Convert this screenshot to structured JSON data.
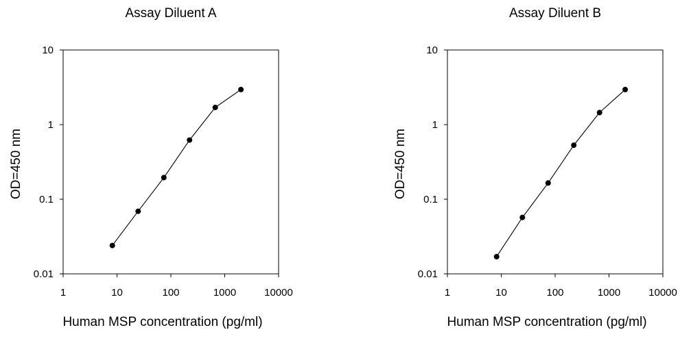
{
  "chart_data": [
    {
      "type": "line",
      "title": "Assay Diluent A",
      "xlabel": "Human MSP concentration (pg/ml)",
      "ylabel": "OD=450 nm",
      "x_scale": "log",
      "y_scale": "log",
      "xlim": [
        1,
        10000
      ],
      "ylim": [
        0.01,
        10
      ],
      "x_ticks": [
        "1",
        "10",
        "100",
        "1000",
        "10000"
      ],
      "y_ticks": [
        "0.01",
        "0.1",
        "1",
        "10"
      ],
      "grid": false,
      "series": [
        {
          "x": [
            8.2,
            24.7,
            74.1,
            222,
            667,
            2000
          ],
          "y": [
            0.024,
            0.069,
            0.195,
            0.62,
            1.7,
            2.95
          ]
        }
      ]
    },
    {
      "type": "line",
      "title": "Assay Diluent B",
      "xlabel": "Human MSP concentration (pg/ml)",
      "ylabel": "OD=450 nm",
      "x_scale": "log",
      "y_scale": "log",
      "xlim": [
        1,
        10000
      ],
      "ylim": [
        0.01,
        10
      ],
      "x_ticks": [
        "1",
        "10",
        "100",
        "1000",
        "10000"
      ],
      "y_ticks": [
        "0.01",
        "0.1",
        "1",
        "10"
      ],
      "grid": false,
      "series": [
        {
          "x": [
            8.2,
            24.7,
            74.1,
            222,
            667,
            2000
          ],
          "y": [
            0.017,
            0.057,
            0.165,
            0.53,
            1.45,
            2.95
          ]
        }
      ]
    }
  ]
}
